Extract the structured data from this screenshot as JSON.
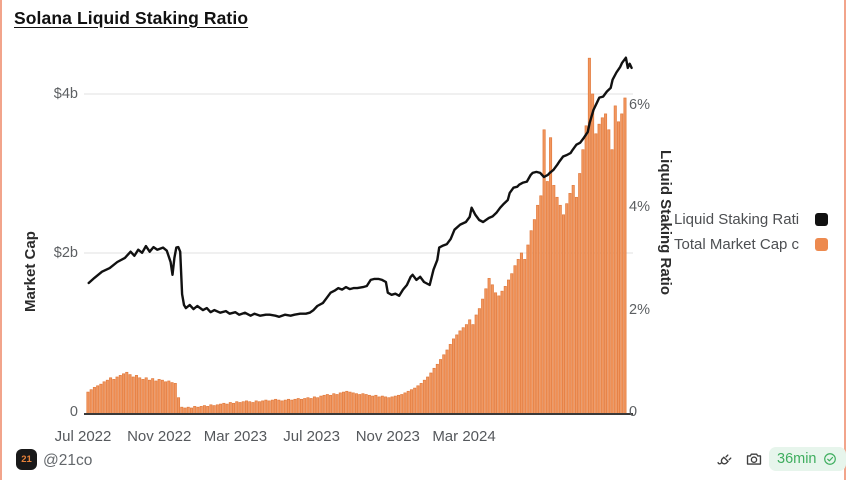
{
  "page": {
    "title": "Solana Liquid Staking Ratio",
    "colors": {
      "bar_orange": "#F2975F",
      "bar_edge": "#E17A3D",
      "line_black": "#111111",
      "gridline": "#E8E8E8",
      "axis_line": "#3A3A3A",
      "frame_salmon": "#F2A48B",
      "badge_green": "#3FAE5F",
      "badge_bg": "#E7F5EC"
    }
  },
  "legend": [
    {
      "label": "Liquid Staking Rati",
      "color": "#111111"
    },
    {
      "label": "Total Market Cap c",
      "color": "#ED8A4F"
    }
  ],
  "footer": {
    "logo_text": "21",
    "handle": "@21co",
    "freshness_label": "36min",
    "icons": [
      "plug-icon",
      "camera-icon",
      "verified-check-icon"
    ]
  },
  "chart_data": {
    "type": "combo-line-bar",
    "title": "Solana Liquid Staking Ratio",
    "x_unit": "months since Jul 2022",
    "x_ticks": [
      {
        "m": 0,
        "label": "Jul 2022"
      },
      {
        "m": 4,
        "label": "Nov 2022"
      },
      {
        "m": 8,
        "label": "Mar 2023"
      },
      {
        "m": 12,
        "label": "Jul 2023"
      },
      {
        "m": 16,
        "label": "Nov 2023"
      },
      {
        "m": 20,
        "label": "Mar 2024"
      }
    ],
    "left_axis": {
      "label": "Market Cap",
      "unit": "$ billions",
      "range": [
        0,
        4.6
      ],
      "gridline_values": [
        2,
        4
      ],
      "ticks": [
        {
          "v": 4,
          "label": "$4b"
        },
        {
          "v": 2,
          "label": "$2b"
        },
        {
          "v": 0,
          "label": "0"
        }
      ]
    },
    "right_axis": {
      "label": "Liquid Staking Ratio",
      "unit": "%",
      "range": [
        0,
        7.1
      ],
      "ticks": [
        {
          "v": 6,
          "label": "6%"
        },
        {
          "v": 4,
          "label": "4%"
        },
        {
          "v": 2,
          "label": "2%"
        },
        {
          "v": 0,
          "label": "0"
        }
      ]
    },
    "series": [
      {
        "name": "Liquid Staking Rati",
        "type": "line",
        "axis": "right",
        "color": "#111111",
        "points": [
          [
            0.3,
            2.52
          ],
          [
            0.6,
            2.62
          ],
          [
            1.0,
            2.74
          ],
          [
            1.4,
            2.81
          ],
          [
            1.8,
            2.93
          ],
          [
            2.2,
            3.01
          ],
          [
            2.5,
            3.13
          ],
          [
            2.7,
            3.05
          ],
          [
            2.9,
            3.17
          ],
          [
            3.1,
            3.11
          ],
          [
            3.3,
            3.24
          ],
          [
            3.5,
            3.13
          ],
          [
            3.7,
            3.22
          ],
          [
            3.9,
            3.17
          ],
          [
            4.2,
            3.21
          ],
          [
            4.4,
            3.15
          ],
          [
            4.6,
            2.93
          ],
          [
            4.7,
            2.68
          ],
          [
            4.8,
            3.01
          ],
          [
            4.9,
            3.21
          ],
          [
            5.0,
            3.22
          ],
          [
            5.1,
            3.13
          ],
          [
            5.2,
            2.3
          ],
          [
            5.3,
            2.09
          ],
          [
            5.4,
            2.03
          ],
          [
            5.6,
            2.09
          ],
          [
            5.8,
            2.01
          ],
          [
            6.0,
            2.07
          ],
          [
            6.3,
            1.99
          ],
          [
            6.5,
            2.03
          ],
          [
            6.7,
            1.95
          ],
          [
            6.9,
            1.99
          ],
          [
            7.2,
            1.94
          ],
          [
            7.5,
            1.97
          ],
          [
            7.7,
            1.92
          ],
          [
            8.0,
            1.95
          ],
          [
            8.2,
            1.9
          ],
          [
            8.5,
            1.94
          ],
          [
            8.8,
            1.88
          ],
          [
            9.0,
            1.92
          ],
          [
            9.3,
            1.88
          ],
          [
            9.6,
            1.9
          ],
          [
            9.8,
            1.9
          ],
          [
            10.1,
            1.88
          ],
          [
            10.3,
            1.86
          ],
          [
            10.6,
            1.9
          ],
          [
            10.9,
            1.88
          ],
          [
            11.1,
            1.9
          ],
          [
            11.4,
            1.92
          ],
          [
            11.7,
            1.92
          ],
          [
            11.9,
            1.94
          ],
          [
            12.1,
            1.99
          ],
          [
            12.3,
            2.07
          ],
          [
            12.6,
            2.13
          ],
          [
            12.8,
            2.23
          ],
          [
            13.0,
            2.33
          ],
          [
            13.2,
            2.37
          ],
          [
            13.4,
            2.42
          ],
          [
            13.6,
            2.39
          ],
          [
            13.8,
            2.44
          ],
          [
            14.0,
            2.4
          ],
          [
            14.2,
            2.42
          ],
          [
            14.4,
            2.42
          ],
          [
            14.7,
            2.44
          ],
          [
            14.9,
            2.46
          ],
          [
            15.1,
            2.58
          ],
          [
            15.3,
            2.6
          ],
          [
            15.5,
            2.6
          ],
          [
            15.7,
            2.58
          ],
          [
            15.9,
            2.54
          ],
          [
            16.0,
            2.33
          ],
          [
            16.2,
            2.29
          ],
          [
            16.4,
            2.31
          ],
          [
            16.6,
            2.27
          ],
          [
            16.8,
            2.39
          ],
          [
            17.0,
            2.48
          ],
          [
            17.2,
            2.64
          ],
          [
            17.3,
            2.68
          ],
          [
            17.5,
            2.58
          ],
          [
            17.7,
            2.64
          ],
          [
            17.9,
            2.54
          ],
          [
            18.1,
            2.5
          ],
          [
            18.2,
            2.48
          ],
          [
            18.4,
            2.78
          ],
          [
            18.6,
            2.97
          ],
          [
            18.7,
            3.21
          ],
          [
            18.9,
            3.25
          ],
          [
            19.1,
            3.28
          ],
          [
            19.3,
            3.38
          ],
          [
            19.5,
            3.56
          ],
          [
            19.8,
            3.66
          ],
          [
            20.1,
            3.71
          ],
          [
            20.3,
            3.81
          ],
          [
            20.4,
            3.99
          ],
          [
            20.6,
            3.85
          ],
          [
            20.8,
            3.75
          ],
          [
            21.0,
            3.71
          ],
          [
            21.3,
            3.79
          ],
          [
            21.5,
            3.82
          ],
          [
            21.7,
            3.89
          ],
          [
            21.9,
            3.99
          ],
          [
            22.1,
            4.07
          ],
          [
            22.3,
            4.14
          ],
          [
            22.4,
            4.28
          ],
          [
            22.6,
            4.38
          ],
          [
            22.8,
            4.4
          ],
          [
            22.9,
            4.44
          ],
          [
            23.1,
            4.48
          ],
          [
            23.3,
            4.5
          ],
          [
            23.5,
            4.63
          ],
          [
            23.6,
            4.67
          ],
          [
            23.8,
            4.69
          ],
          [
            24.0,
            4.67
          ],
          [
            24.2,
            4.59
          ],
          [
            24.4,
            4.63
          ],
          [
            24.5,
            4.67
          ],
          [
            24.7,
            4.73
          ],
          [
            24.9,
            4.83
          ],
          [
            25.0,
            4.89
          ],
          [
            25.2,
            4.99
          ],
          [
            25.4,
            5.02
          ],
          [
            25.6,
            5.06
          ],
          [
            25.7,
            5.12
          ],
          [
            25.9,
            5.22
          ],
          [
            26.1,
            5.26
          ],
          [
            26.3,
            5.36
          ],
          [
            26.5,
            5.47
          ],
          [
            26.6,
            5.65
          ],
          [
            26.8,
            5.9
          ],
          [
            27.0,
            6.06
          ],
          [
            27.1,
            6.14
          ],
          [
            27.3,
            6.16
          ],
          [
            27.5,
            6.26
          ],
          [
            27.7,
            6.33
          ],
          [
            27.8,
            6.49
          ],
          [
            28.0,
            6.63
          ],
          [
            28.2,
            6.74
          ],
          [
            28.3,
            6.82
          ],
          [
            28.5,
            6.92
          ],
          [
            28.6,
            6.72
          ],
          [
            28.7,
            6.8
          ],
          [
            28.8,
            6.72
          ]
        ]
      },
      {
        "name": "Total Market Cap c",
        "type": "bar",
        "axis": "left",
        "color": "#F2975F",
        "x_start_m": 0.26,
        "x_end_m": 28.45,
        "values": [
          0.25,
          0.28,
          0.31,
          0.33,
          0.35,
          0.38,
          0.4,
          0.43,
          0.41,
          0.44,
          0.46,
          0.48,
          0.5,
          0.47,
          0.44,
          0.46,
          0.43,
          0.41,
          0.43,
          0.4,
          0.42,
          0.39,
          0.41,
          0.4,
          0.38,
          0.39,
          0.37,
          0.36,
          0.18,
          0.06,
          0.05,
          0.06,
          0.05,
          0.07,
          0.06,
          0.07,
          0.08,
          0.07,
          0.09,
          0.08,
          0.09,
          0.1,
          0.11,
          0.1,
          0.12,
          0.11,
          0.13,
          0.12,
          0.13,
          0.14,
          0.13,
          0.12,
          0.14,
          0.13,
          0.14,
          0.15,
          0.14,
          0.15,
          0.16,
          0.15,
          0.14,
          0.15,
          0.16,
          0.15,
          0.16,
          0.17,
          0.16,
          0.17,
          0.18,
          0.17,
          0.19,
          0.18,
          0.2,
          0.21,
          0.22,
          0.21,
          0.23,
          0.22,
          0.24,
          0.25,
          0.26,
          0.25,
          0.24,
          0.23,
          0.22,
          0.23,
          0.22,
          0.21,
          0.2,
          0.21,
          0.19,
          0.2,
          0.19,
          0.18,
          0.19,
          0.2,
          0.21,
          0.22,
          0.24,
          0.26,
          0.28,
          0.3,
          0.33,
          0.36,
          0.4,
          0.44,
          0.49,
          0.55,
          0.6,
          0.66,
          0.72,
          0.78,
          0.85,
          0.92,
          0.97,
          1.02,
          1.06,
          1.1,
          1.16,
          1.1,
          1.22,
          1.3,
          1.42,
          1.55,
          1.68,
          1.6,
          1.5,
          1.46,
          1.52,
          1.58,
          1.66,
          1.74,
          1.84,
          1.92,
          2.0,
          1.92,
          2.1,
          2.28,
          2.42,
          2.6,
          2.72,
          3.55,
          2.9,
          3.45,
          2.85,
          2.7,
          2.6,
          2.48,
          2.62,
          2.75,
          2.85,
          2.7,
          3.0,
          3.3,
          3.6,
          4.45,
          4.0,
          3.5,
          3.62,
          3.7,
          3.75,
          3.55,
          3.3,
          3.85,
          3.65,
          3.75,
          3.95
        ]
      }
    ]
  }
}
